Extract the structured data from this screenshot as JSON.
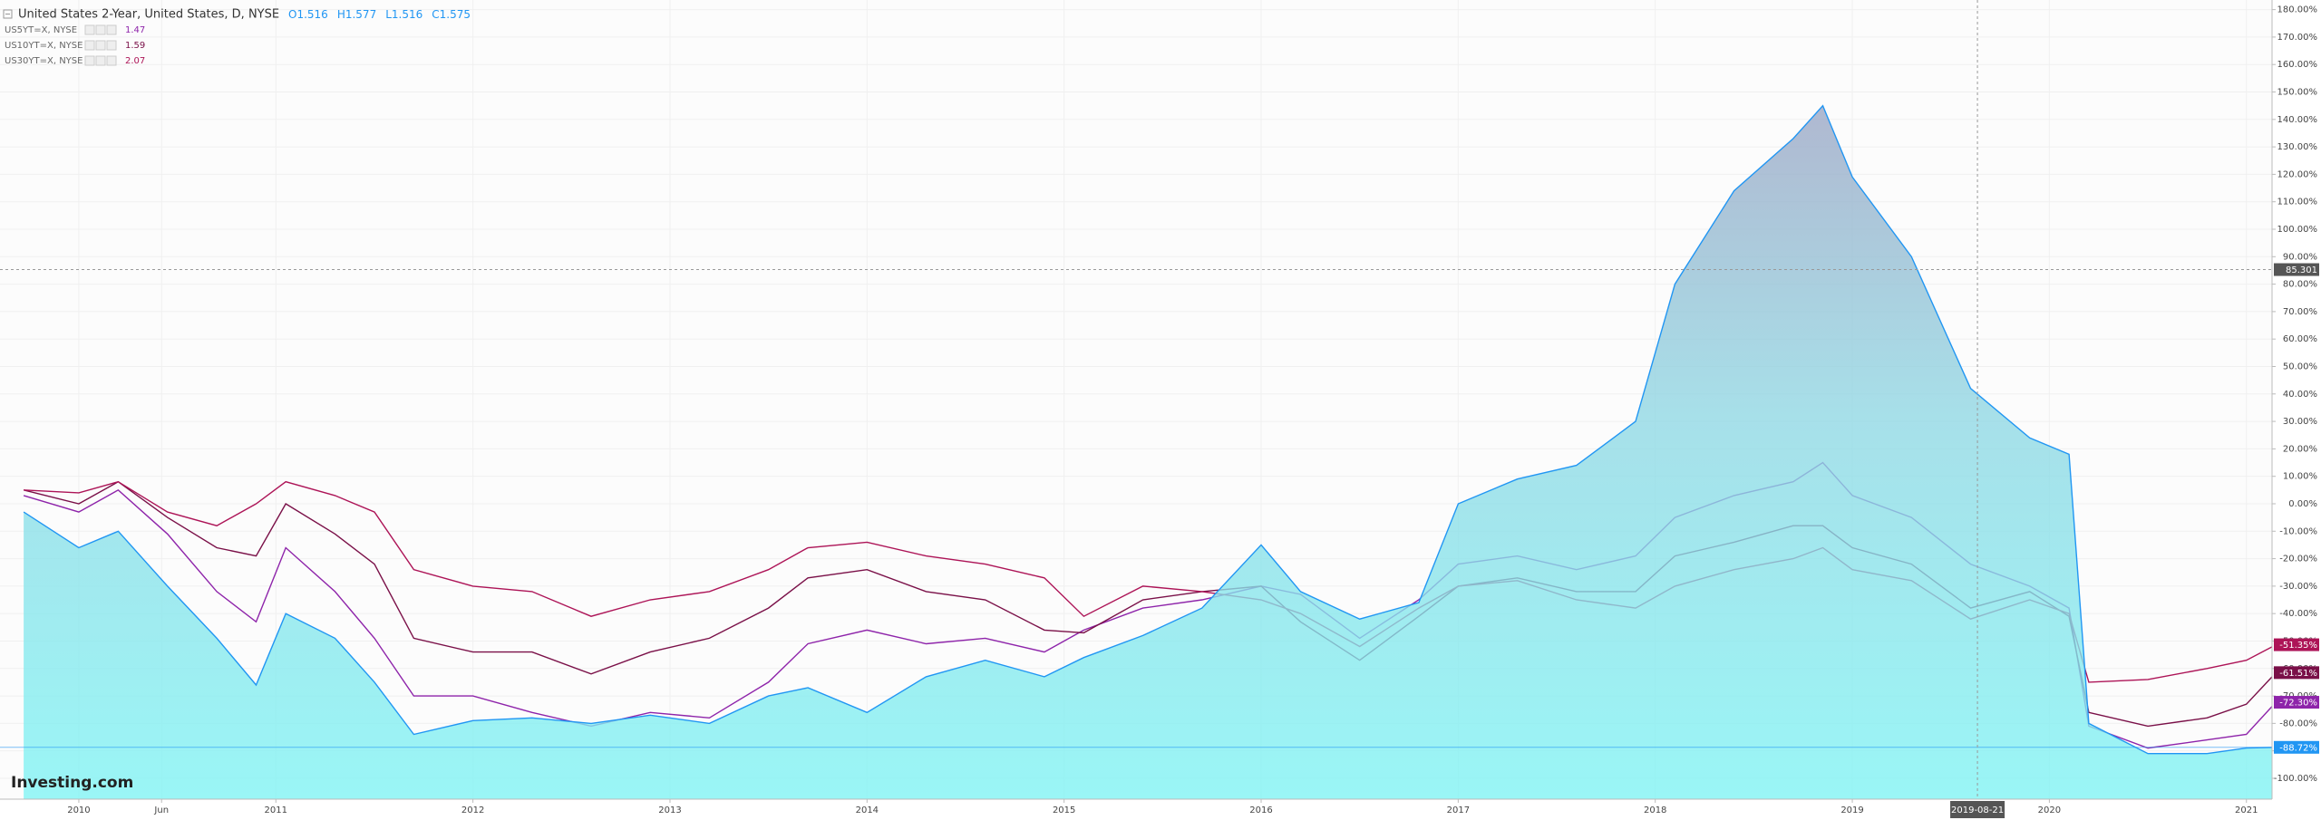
{
  "chart_data": {
    "type": "line",
    "title": "United States 2-Year, United States, D, NYSE",
    "ohlc": [
      {
        "label": "O",
        "value": 1.516
      },
      {
        "label": "H",
        "value": 1.577
      },
      {
        "label": "L",
        "value": 1.516
      },
      {
        "label": "C",
        "value": 1.575
      }
    ],
    "watermark": "Investing.com",
    "x": [
      2009.72,
      2010.0,
      2010.2,
      2010.45,
      2010.7,
      2010.9,
      2011.05,
      2011.3,
      2011.5,
      2011.7,
      2012.0,
      2012.3,
      2012.6,
      2012.9,
      2013.2,
      2013.5,
      2013.7,
      2014.0,
      2014.3,
      2014.6,
      2014.9,
      2015.1,
      2015.4,
      2015.7,
      2016.0,
      2016.2,
      2016.5,
      2016.8,
      2017.0,
      2017.3,
      2017.6,
      2017.9,
      2018.1,
      2018.4,
      2018.7,
      2018.85,
      2019.0,
      2019.3,
      2019.6,
      2019.9,
      2020.1,
      2020.2,
      2020.5,
      2020.8,
      2021.0,
      2021.15
    ],
    "series": [
      {
        "name": "United States 2-Year",
        "type": "area",
        "color": "#2196f3",
        "last_value_label": "-88.72%",
        "values": [
          -3,
          -16,
          -10,
          -30,
          -49,
          -66,
          -40,
          -49,
          -65,
          -84,
          -79,
          -78,
          -80,
          -77,
          -80,
          -70,
          -67,
          -76,
          -63,
          -57,
          -63,
          -56,
          -48,
          -38,
          -15,
          -32,
          -42,
          -36,
          0,
          9,
          14,
          30,
          80,
          114,
          133,
          145,
          119,
          90,
          42,
          24,
          18,
          -80,
          -91,
          -91,
          -89,
          -88.72
        ]
      },
      {
        "name": "US5YT=X, NYSE",
        "quote": 1.47,
        "color": "#8e24aa",
        "last_value_label": "-72.30%",
        "values": [
          3,
          -3,
          5,
          -11,
          -32,
          -43,
          -16,
          -32,
          -49,
          -70,
          -70,
          -76,
          -81,
          -76,
          -78,
          -65,
          -51,
          -46,
          -51,
          -49,
          -54,
          -46,
          -38,
          -35,
          -30,
          -33,
          -49,
          -35,
          -22,
          -19,
          -24,
          -19,
          -5,
          3,
          8,
          15,
          3,
          -5,
          -22,
          -30,
          -38,
          -81,
          -89,
          -86,
          -84,
          -72.3
        ]
      },
      {
        "name": "US10YT=X, NYSE",
        "quote": 1.59,
        "color": "#7a1048",
        "last_value_label": "-61.51%",
        "values": [
          5,
          0,
          8,
          -5,
          -16,
          -19,
          0,
          -11,
          -22,
          -49,
          -54,
          -54,
          -62,
          -54,
          -49,
          -38,
          -27,
          -24,
          -32,
          -35,
          -46,
          -47,
          -35,
          -32,
          -30,
          -43,
          -57,
          -41,
          -30,
          -27,
          -32,
          -32,
          -19,
          -14,
          -8,
          -8,
          -16,
          -22,
          -38,
          -32,
          -41,
          -76,
          -81,
          -78,
          -73,
          -61.51
        ]
      },
      {
        "name": "US30YT=X, NYSE",
        "quote": 2.07,
        "color": "#ad1457",
        "last_value_label": "-51.35%",
        "values": [
          5,
          4,
          8,
          -3,
          -8,
          0,
          8,
          3,
          -3,
          -24,
          -30,
          -32,
          -41,
          -35,
          -32,
          -24,
          -16,
          -14,
          -19,
          -22,
          -27,
          -41,
          -30,
          -32,
          -35,
          -40,
          -52,
          -38,
          -30,
          -28,
          -35,
          -38,
          -30,
          -24,
          -20,
          -16,
          -24,
          -28,
          -42,
          -35,
          -40,
          -65,
          -64,
          -60,
          -57,
          -51.35
        ]
      }
    ],
    "xlim": [
      2009.6,
      2021.13
    ],
    "xticks": [
      2010,
      {
        "value": 2010.42,
        "label": "Jun"
      },
      2011,
      2012,
      2013,
      2014,
      2015,
      2016,
      2017,
      2018,
      2019,
      2020,
      2021
    ],
    "ylim": [
      -107.6,
      183.5
    ],
    "yticks": [
      {
        "value": 180,
        "label": "180.00%"
      },
      {
        "value": 170,
        "label": "170.00%"
      },
      {
        "value": 160,
        "label": "160.00%"
      },
      {
        "value": 150,
        "label": "150.00%"
      },
      {
        "value": 140,
        "label": "140.00%"
      },
      {
        "value": 130,
        "label": "130.00%"
      },
      {
        "value": 120,
        "label": "120.00%"
      },
      {
        "value": 110,
        "label": "110.00%"
      },
      {
        "value": 100,
        "label": "100.00%"
      },
      {
        "value": 90,
        "label": "90.00%"
      },
      {
        "value": 80,
        "label": "80.00%"
      },
      {
        "value": 70,
        "label": "70.00%"
      },
      {
        "value": 60,
        "label": "60.00%"
      },
      {
        "value": 50,
        "label": "50.00%"
      },
      {
        "value": 40,
        "label": "40.00%"
      },
      {
        "value": 30,
        "label": "30.00%"
      },
      {
        "value": 20,
        "label": "20.00%"
      },
      {
        "value": 10,
        "label": "10.00%"
      },
      {
        "value": 0,
        "label": "0.00%"
      },
      {
        "value": -10,
        "label": "-10.00%"
      },
      {
        "value": -20,
        "label": "-20.00%"
      },
      {
        "value": -30,
        "label": "-30.00%"
      },
      {
        "value": -40,
        "label": "-40.00%"
      },
      {
        "value": -50,
        "label": "-50.00%"
      },
      {
        "value": -60,
        "label": "-60.00%"
      },
      {
        "value": -70,
        "label": "-70.00%"
      },
      {
        "value": -80,
        "label": "-80.00%"
      },
      {
        "value": -90,
        "label": "-90.00%"
      },
      {
        "value": -100,
        "label": "-100.00%"
      }
    ],
    "grid": true,
    "crosshair": {
      "x": {
        "value": 2019.635,
        "label": "2019-08-21"
      },
      "y": 85.301
    }
  }
}
